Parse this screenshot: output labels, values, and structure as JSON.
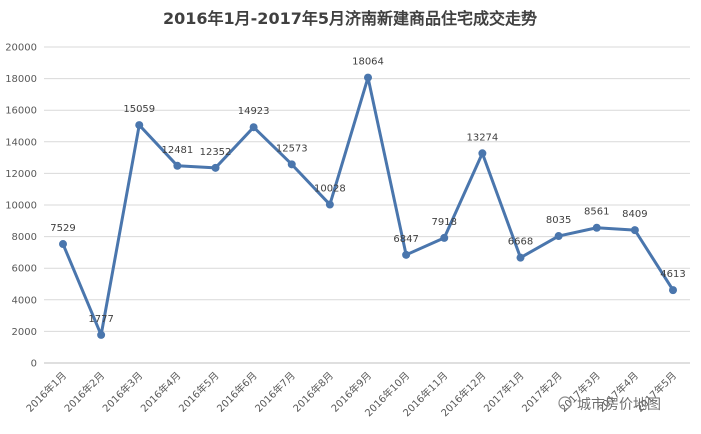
{
  "chart_data": {
    "type": "line",
    "title": "2016年1月-2017年5月济南新建商品住宅成交走势",
    "categories": [
      "2016年1月",
      "2016年2月",
      "2016年3月",
      "2016年4月",
      "2016年5月",
      "2016年6月",
      "2016年7月",
      "2016年8月",
      "2016年9月",
      "2016年10月",
      "2016年11月",
      "2016年12月",
      "2017年1月",
      "2017年2月",
      "2017年3月",
      "2017年4月",
      "2017年5月"
    ],
    "series": [
      {
        "values": [
          7529,
          1777,
          15059,
          12481,
          12352,
          14923,
          12573,
          10028,
          18064,
          6847,
          7918,
          13274,
          6668,
          8035,
          8561,
          8409,
          4613
        ]
      }
    ],
    "ylim": [
      0,
      20000
    ],
    "yticks": [
      0,
      2000,
      4000,
      6000,
      8000,
      10000,
      12000,
      14000,
      16000,
      18000,
      20000
    ],
    "grid": true,
    "line_color": "#4a76ad"
  },
  "watermark": "城市房价地图"
}
